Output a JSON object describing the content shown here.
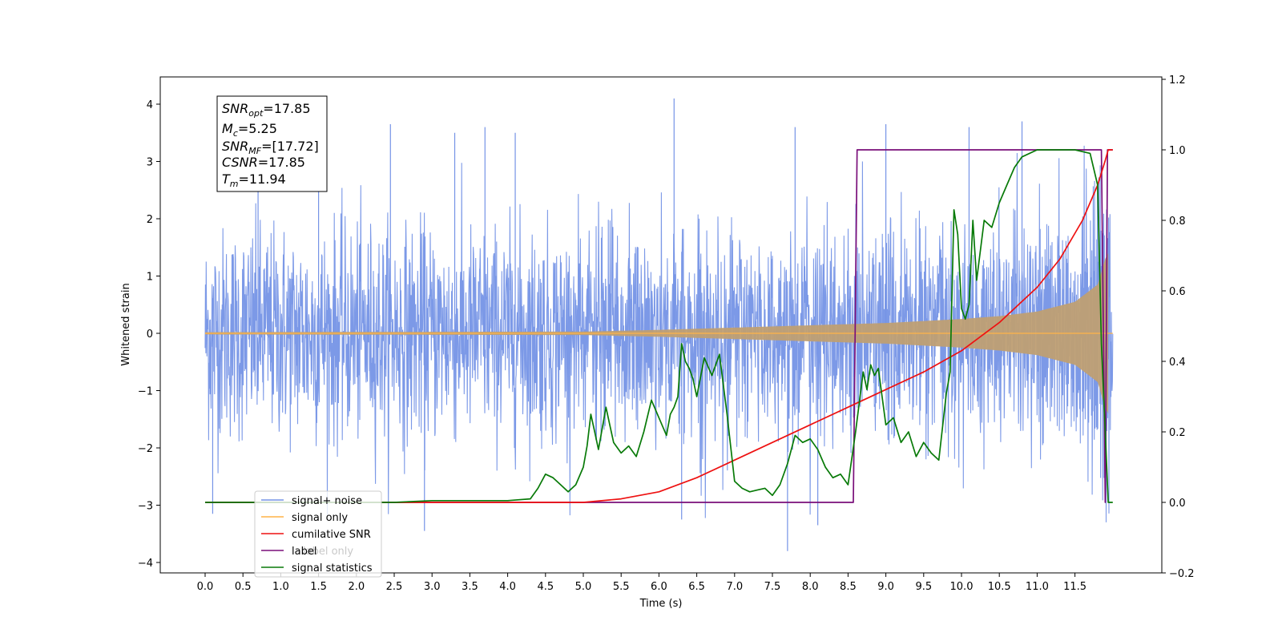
{
  "chart_data": {
    "type": "line",
    "xlabel": "Time (s)",
    "ylabel": "Whitened strain",
    "x_range": [
      -0.6,
      12.6
    ],
    "y_left_range": [
      -4.4,
      4.5
    ],
    "y_right_range": [
      -0.2,
      1.2
    ],
    "x_ticks": [
      "0.0",
      "0.5",
      "1.0",
      "1.5",
      "2.0",
      "2.5",
      "3.0",
      "3.5",
      "4.0",
      "4.5",
      "5.0",
      "5.5",
      "6.0",
      "6.5",
      "7.0",
      "7.5",
      "8.0",
      "8.5",
      "9.0",
      "9.5",
      "10.0",
      "10.5",
      "11.0",
      "11.5"
    ],
    "y_left_ticks": [
      "4",
      "3",
      "2",
      "1",
      "0",
      "−1",
      "−2",
      "−3",
      "−4"
    ],
    "y_right_ticks": [
      "1.2",
      "1.0",
      "0.8",
      "0.6",
      "0.4",
      "0.2",
      "0.0",
      "−0.2"
    ],
    "grid": false,
    "legend_position": "lower-left",
    "annotation": {
      "lines": [
        {
          "sym": "SNR",
          "sub": "opt",
          "val": "=17.85"
        },
        {
          "sym": "M",
          "sub": "c",
          "val": "=5.25"
        },
        {
          "sym": "SNR",
          "sub": "MF",
          "val": "=[17.72]"
        },
        {
          "sym": "CSNR",
          "sub": "",
          "val": "=17.85"
        },
        {
          "sym": "T",
          "sub": "m",
          "val": "=11.94"
        }
      ]
    },
    "series": [
      {
        "name": "signal+ noise",
        "axis": "left",
        "color": "#7593e6",
        "approx_envelope": "noise about 0 with std ~0.9, peaks near +4.1 and -3.8",
        "spikes": [
          {
            "x": 0.7,
            "y": 3.2
          },
          {
            "x": 1.5,
            "y": 3.0
          },
          {
            "x": 2.45,
            "y": 3.65
          },
          {
            "x": 3.3,
            "y": 3.5
          },
          {
            "x": 3.7,
            "y": 3.6
          },
          {
            "x": 4.1,
            "y": 3.5
          },
          {
            "x": 6.2,
            "y": 4.1
          },
          {
            "x": 7.8,
            "y": 3.6
          },
          {
            "x": 9.0,
            "y": 3.65
          },
          {
            "x": 10.1,
            "y": 3.6
          },
          {
            "x": 10.8,
            "y": 3.7
          },
          {
            "x": 7.7,
            "y": -3.8
          },
          {
            "x": 2.9,
            "y": -3.45
          },
          {
            "x": 8.1,
            "y": -3.35
          },
          {
            "x": 6.3,
            "y": -3.25
          },
          {
            "x": 0.1,
            "y": -3.15
          }
        ]
      },
      {
        "name": "signal only",
        "axis": "left",
        "color": "#ffb347",
        "envelope": {
          "t": [
            0,
            5.0,
            6.0,
            7.0,
            8.0,
            9.0,
            10.0,
            10.5,
            11.0,
            11.5,
            11.8,
            11.9,
            11.94,
            12.0
          ],
          "amp": [
            0.02,
            0.03,
            0.06,
            0.1,
            0.14,
            0.18,
            0.25,
            0.3,
            0.38,
            0.55,
            0.85,
            1.3,
            1.4,
            0.05
          ]
        }
      },
      {
        "name": "cumilative SNR",
        "axis": "right",
        "color": "#ee1111",
        "x": [
          0,
          5.0,
          5.5,
          6.0,
          6.5,
          7.0,
          7.5,
          8.0,
          8.5,
          9.0,
          9.5,
          10.0,
          10.5,
          11.0,
          11.3,
          11.6,
          11.8,
          11.9,
          11.94,
          12.0
        ],
        "y": [
          0.0,
          0.0,
          0.01,
          0.03,
          0.07,
          0.12,
          0.17,
          0.22,
          0.27,
          0.32,
          0.37,
          0.43,
          0.51,
          0.61,
          0.69,
          0.8,
          0.9,
          0.97,
          1.0,
          1.0
        ]
      },
      {
        "name": "label",
        "axis": "right",
        "color": "#7a0f7a",
        "x": [
          0,
          8.57,
          8.62,
          11.85,
          11.9,
          11.93,
          12.0
        ],
        "y": [
          0.0,
          0.0,
          1.0,
          1.0,
          0.0,
          1.0,
          1.0
        ]
      },
      {
        "name": "label only",
        "axis": "right",
        "color": "#8b4a8b",
        "x": [],
        "y": []
      },
      {
        "name": "signal statistics",
        "axis": "right",
        "color": "#087a08",
        "x": [
          0,
          2.5,
          3.0,
          3.5,
          4.0,
          4.3,
          4.4,
          4.5,
          4.6,
          4.7,
          4.8,
          4.9,
          5.0,
          5.05,
          5.1,
          5.15,
          5.2,
          5.3,
          5.35,
          5.4,
          5.5,
          5.6,
          5.7,
          5.8,
          5.9,
          6.0,
          6.1,
          6.15,
          6.2,
          6.25,
          6.3,
          6.35,
          6.4,
          6.45,
          6.5,
          6.6,
          6.7,
          6.8,
          6.9,
          7.0,
          7.1,
          7.2,
          7.3,
          7.4,
          7.5,
          7.6,
          7.7,
          7.8,
          7.9,
          8.0,
          8.1,
          8.2,
          8.3,
          8.4,
          8.5,
          8.6,
          8.7,
          8.75,
          8.8,
          8.85,
          8.9,
          9.0,
          9.1,
          9.2,
          9.3,
          9.4,
          9.5,
          9.6,
          9.7,
          9.8,
          9.85,
          9.9,
          9.95,
          10.0,
          10.05,
          10.1,
          10.15,
          10.2,
          10.3,
          10.4,
          10.5,
          10.6,
          10.7,
          10.8,
          11.0,
          11.2,
          11.5,
          11.7,
          11.8,
          11.85,
          11.9,
          11.94,
          12.0
        ],
        "y": [
          0.0,
          0.0,
          0.005,
          0.005,
          0.005,
          0.01,
          0.04,
          0.08,
          0.07,
          0.05,
          0.03,
          0.05,
          0.1,
          0.16,
          0.25,
          0.2,
          0.15,
          0.27,
          0.22,
          0.17,
          0.14,
          0.16,
          0.13,
          0.2,
          0.29,
          0.24,
          0.19,
          0.25,
          0.27,
          0.3,
          0.45,
          0.4,
          0.38,
          0.35,
          0.3,
          0.41,
          0.36,
          0.42,
          0.25,
          0.06,
          0.04,
          0.03,
          0.035,
          0.04,
          0.02,
          0.05,
          0.11,
          0.19,
          0.17,
          0.18,
          0.15,
          0.1,
          0.07,
          0.08,
          0.05,
          0.2,
          0.37,
          0.32,
          0.39,
          0.36,
          0.38,
          0.22,
          0.24,
          0.17,
          0.2,
          0.13,
          0.17,
          0.14,
          0.12,
          0.31,
          0.37,
          0.83,
          0.76,
          0.55,
          0.52,
          0.56,
          0.8,
          0.63,
          0.8,
          0.78,
          0.85,
          0.9,
          0.95,
          0.98,
          1.0,
          1.0,
          1.0,
          0.99,
          0.9,
          0.45,
          0.2,
          0.0,
          0.0
        ]
      }
    ]
  }
}
